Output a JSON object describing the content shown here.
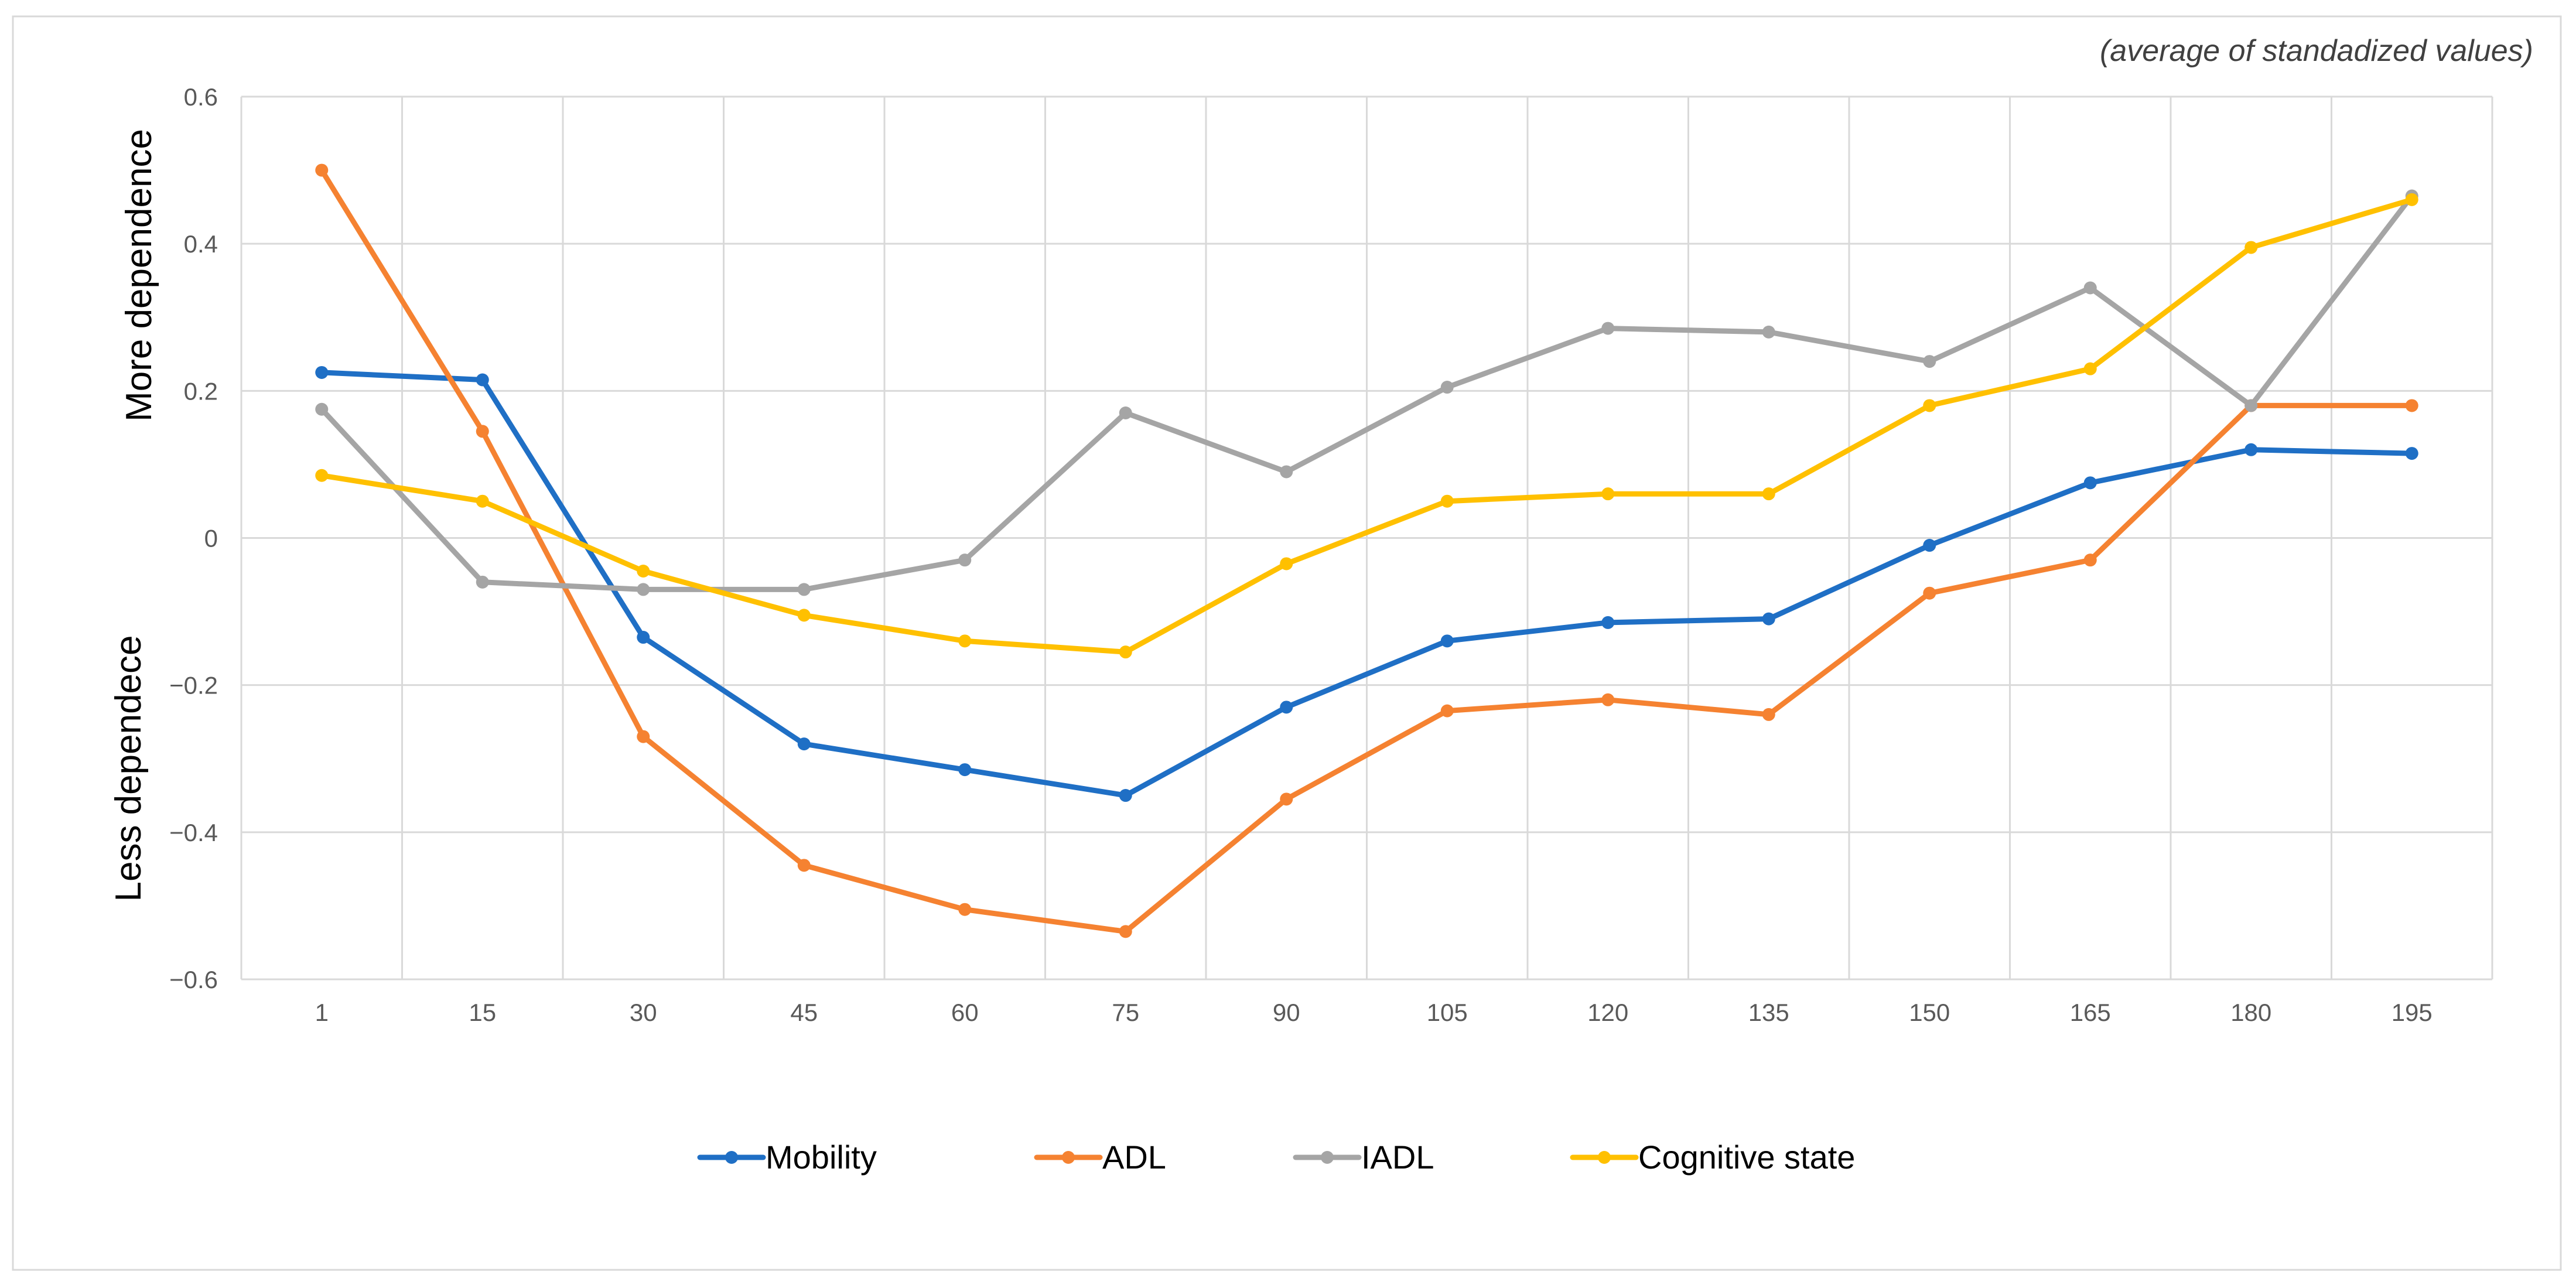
{
  "chart_data": {
    "type": "line",
    "subtitle": "(average of standadized values)",
    "ylabel_upper": "More dependence",
    "ylabel_lower": "Less dependece",
    "categories": [
      "1",
      "15",
      "30",
      "45",
      "60",
      "75",
      "90",
      "105",
      "120",
      "135",
      "150",
      "165",
      "180",
      "195"
    ],
    "y_ticks": [
      "0.6",
      "0.4",
      "0.2",
      "0",
      "−0.2",
      "−0.4",
      "−0.6"
    ],
    "ylim": [
      -0.6,
      0.6
    ],
    "grid": true,
    "legend_position": "bottom",
    "series": [
      {
        "name": "Mobility",
        "color": "#1F6FC5",
        "values": [
          0.225,
          0.215,
          -0.135,
          -0.28,
          -0.315,
          -0.35,
          -0.23,
          -0.14,
          -0.115,
          -0.11,
          -0.01,
          0.075,
          0.12,
          0.115
        ]
      },
      {
        "name": "ADL",
        "color": "#F58231",
        "values": [
          0.5,
          0.145,
          -0.27,
          -0.445,
          -0.505,
          -0.535,
          -0.355,
          -0.235,
          -0.22,
          -0.24,
          -0.075,
          -0.03,
          0.18,
          0.18
        ]
      },
      {
        "name": "IADL",
        "color": "#A5A5A5",
        "values": [
          0.175,
          -0.06,
          -0.07,
          -0.07,
          -0.03,
          0.17,
          0.09,
          0.205,
          0.285,
          0.28,
          0.24,
          0.34,
          0.18,
          0.465
        ]
      },
      {
        "name": "Cognitive state",
        "color": "#FFC000",
        "values": [
          0.085,
          0.05,
          -0.045,
          -0.105,
          -0.14,
          -0.155,
          -0.035,
          0.05,
          0.06,
          0.06,
          0.18,
          0.23,
          0.395,
          0.46
        ]
      }
    ]
  }
}
